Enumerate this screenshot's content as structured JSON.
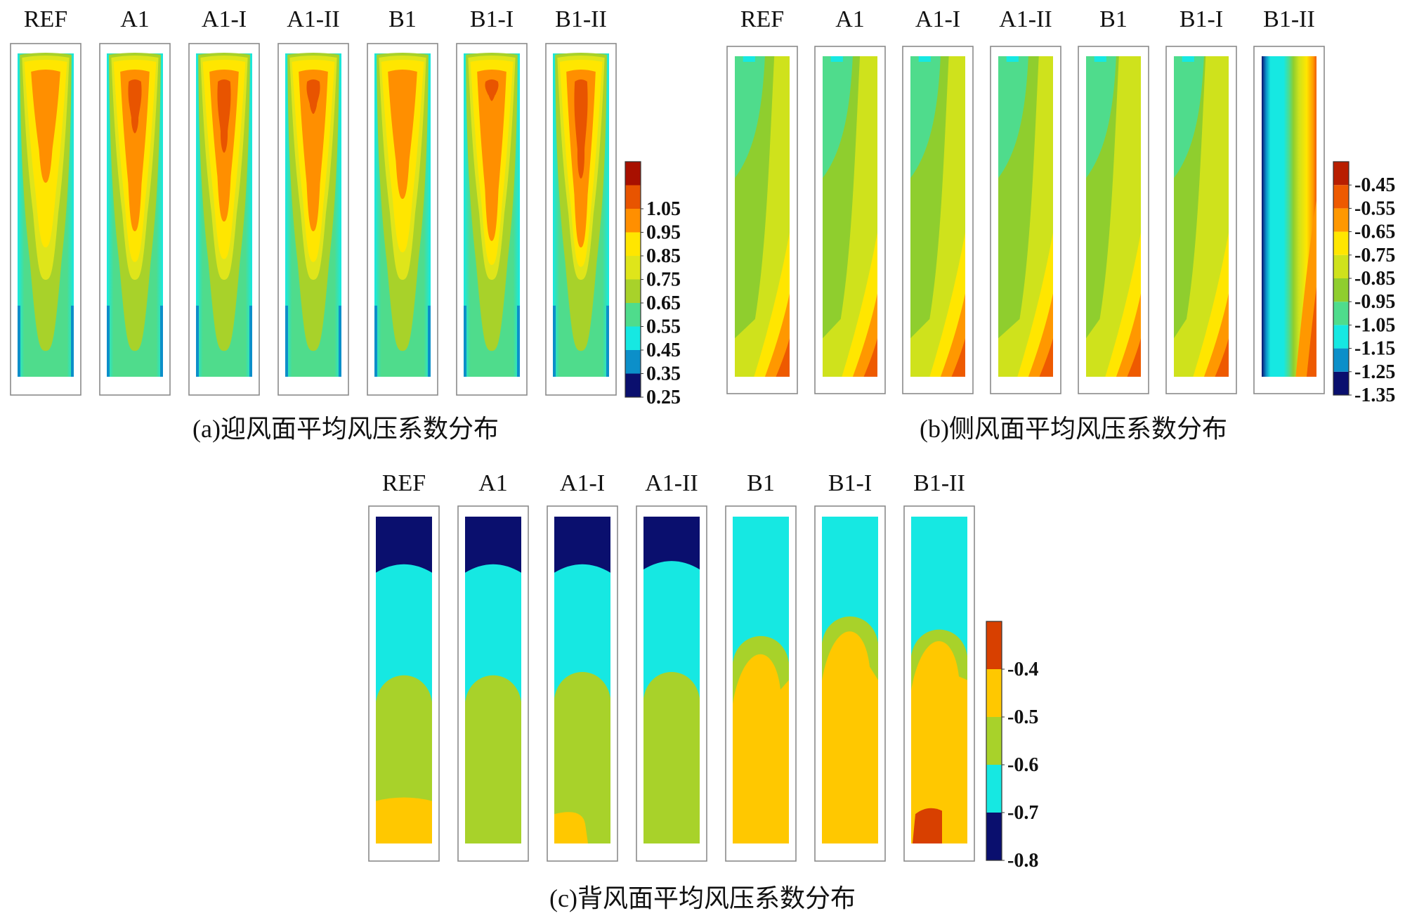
{
  "figure": {
    "captions": {
      "a": "(a)迎风面平均风压系数分布",
      "b": "(b)侧风面平均风压系数分布",
      "c": "(c)背风面平均风压系数分布"
    }
  },
  "chart_data": [
    {
      "type": "heatmap",
      "id": "a",
      "title": "(a)迎风面平均风压系数分布",
      "cases": [
        "REF",
        "A1",
        "A1-I",
        "A1-II",
        "B1",
        "B1-I",
        "B1-II"
      ],
      "colorbar": {
        "levels": [
          0.25,
          0.35,
          0.45,
          0.55,
          0.65,
          0.75,
          0.85,
          0.95,
          1.05,
          1.15
        ],
        "tick_labels": [
          "0.25",
          "0.35",
          "0.45",
          "0.55",
          "0.65",
          "0.75",
          "0.85",
          "0.95",
          "1.05"
        ],
        "colors": [
          "#0a0f6e",
          "#0c8fc9",
          "#16e8e2",
          "#4fdc8c",
          "#a8d22a",
          "#dfe51a",
          "#ffe600",
          "#ff8f00",
          "#e85400",
          "#a81000"
        ]
      },
      "peak_coefficient": [
        0.98,
        1.06,
        1.04,
        1.04,
        0.95,
        1.05,
        1.08
      ]
    },
    {
      "type": "heatmap",
      "id": "b",
      "title": "(b)侧风面平均风压系数分布",
      "cases": [
        "REF",
        "A1",
        "A1-I",
        "A1-II",
        "B1",
        "B1-I",
        "B1-II"
      ],
      "colorbar": {
        "levels": [
          -1.35,
          -1.25,
          -1.15,
          -1.05,
          -0.95,
          -0.85,
          -0.75,
          -0.65,
          -0.55,
          -0.45,
          -0.35
        ],
        "tick_labels": [
          "-1.35",
          "-1.25",
          "-1.15",
          "-1.05",
          "-0.95",
          "-0.85",
          "-0.75",
          "-0.65",
          "-0.55",
          "-0.45"
        ],
        "colors": [
          "#0a0f6e",
          "#0c8fc9",
          "#16e8e2",
          "#4fdc8c",
          "#8fce2e",
          "#cfe21c",
          "#ffe600",
          "#ff9800",
          "#ee5a00",
          "#b81e00"
        ]
      },
      "min_coefficient": [
        -1.02,
        -1.05,
        -1.08,
        -1.1,
        -1.05,
        -1.02,
        -1.38
      ]
    },
    {
      "type": "heatmap",
      "id": "c",
      "title": "(c)背风面平均风压系数分布",
      "cases": [
        "REF",
        "A1",
        "A1-I",
        "A1-II",
        "B1",
        "B1-I",
        "B1-II"
      ],
      "colorbar": {
        "levels": [
          -0.8,
          -0.7,
          -0.6,
          -0.5,
          -0.4,
          -0.3
        ],
        "tick_labels": [
          "-0.8",
          "-0.7",
          "-0.6",
          "-0.5",
          "-0.4"
        ],
        "colors": [
          "#0a0f6e",
          "#16e8e2",
          "#a8d22a",
          "#ffc800",
          "#d84000"
        ]
      },
      "top_coefficient": [
        -0.85,
        -0.85,
        -0.85,
        -0.85,
        -0.68,
        -0.68,
        -0.68
      ],
      "bottom_coefficient": [
        -0.48,
        -0.58,
        -0.52,
        -0.58,
        -0.48,
        -0.48,
        -0.38
      ]
    }
  ]
}
